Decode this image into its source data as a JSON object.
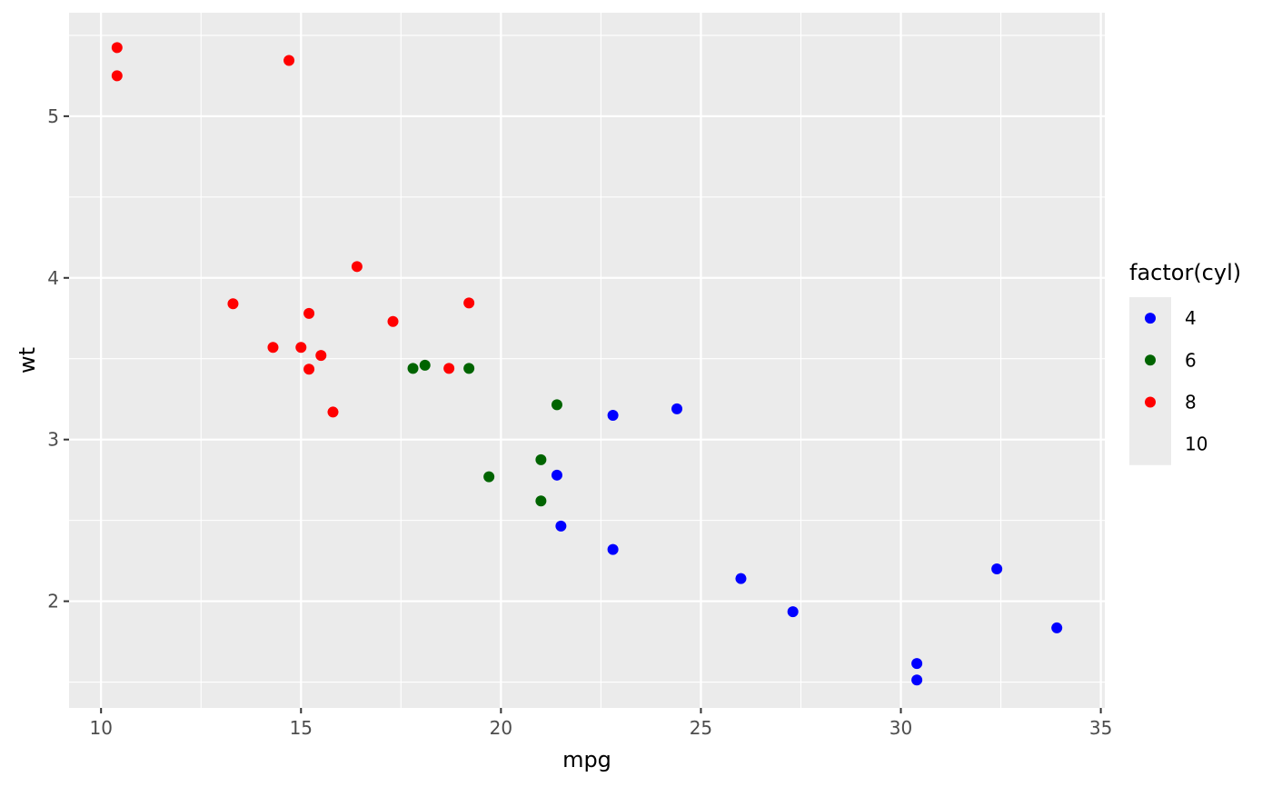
{
  "chart_data": {
    "type": "scatter",
    "title": "",
    "xlabel": "mpg",
    "ylabel": "wt",
    "xlim": [
      9.2,
      35.1
    ],
    "ylim": [
      1.34,
      5.64
    ],
    "xticks": [
      10,
      15,
      20,
      25,
      30,
      35
    ],
    "yticks": [
      2,
      3,
      4,
      5
    ],
    "xtick_labels": [
      "10",
      "15",
      "20",
      "25",
      "30",
      "35"
    ],
    "ytick_labels": [
      "2",
      "3",
      "4",
      "5"
    ],
    "grid": true,
    "legend": {
      "title": "factor(cyl)",
      "position": "right",
      "entries": [
        {
          "label": "4",
          "color": "#0000ff"
        },
        {
          "label": "6",
          "color": "#006400"
        },
        {
          "label": "8",
          "color": "#ff0000"
        },
        {
          "label": "10",
          "color": null
        }
      ]
    },
    "colors": {
      "panel_background": "#ebebeb",
      "grid_major": "#ffffff",
      "legend_key_background": "#ebebeb"
    },
    "series": [
      {
        "name": "4",
        "color": "#0000ff",
        "points": [
          [
            22.8,
            3.15
          ],
          [
            24.4,
            3.19
          ],
          [
            22.8,
            2.32
          ],
          [
            32.4,
            2.2
          ],
          [
            30.4,
            1.615
          ],
          [
            33.9,
            1.835
          ],
          [
            21.5,
            2.465
          ],
          [
            27.3,
            1.935
          ],
          [
            26.0,
            2.14
          ],
          [
            30.4,
            1.513
          ],
          [
            21.4,
            2.78
          ]
        ]
      },
      {
        "name": "6",
        "color": "#006400",
        "points": [
          [
            21.0,
            2.62
          ],
          [
            21.0,
            2.875
          ],
          [
            21.4,
            3.215
          ],
          [
            18.1,
            3.46
          ],
          [
            19.2,
            3.44
          ],
          [
            17.8,
            3.44
          ],
          [
            19.7,
            2.77
          ]
        ]
      },
      {
        "name": "8",
        "color": "#ff0000",
        "points": [
          [
            18.7,
            3.44
          ],
          [
            14.3,
            3.57
          ],
          [
            16.4,
            4.07
          ],
          [
            17.3,
            3.73
          ],
          [
            15.2,
            3.78
          ],
          [
            10.4,
            5.25
          ],
          [
            10.4,
            5.424
          ],
          [
            14.7,
            5.345
          ],
          [
            15.5,
            3.52
          ],
          [
            15.2,
            3.435
          ],
          [
            13.3,
            3.84
          ],
          [
            19.2,
            3.845
          ],
          [
            15.8,
            3.17
          ],
          [
            15.0,
            3.57
          ]
        ]
      }
    ]
  }
}
